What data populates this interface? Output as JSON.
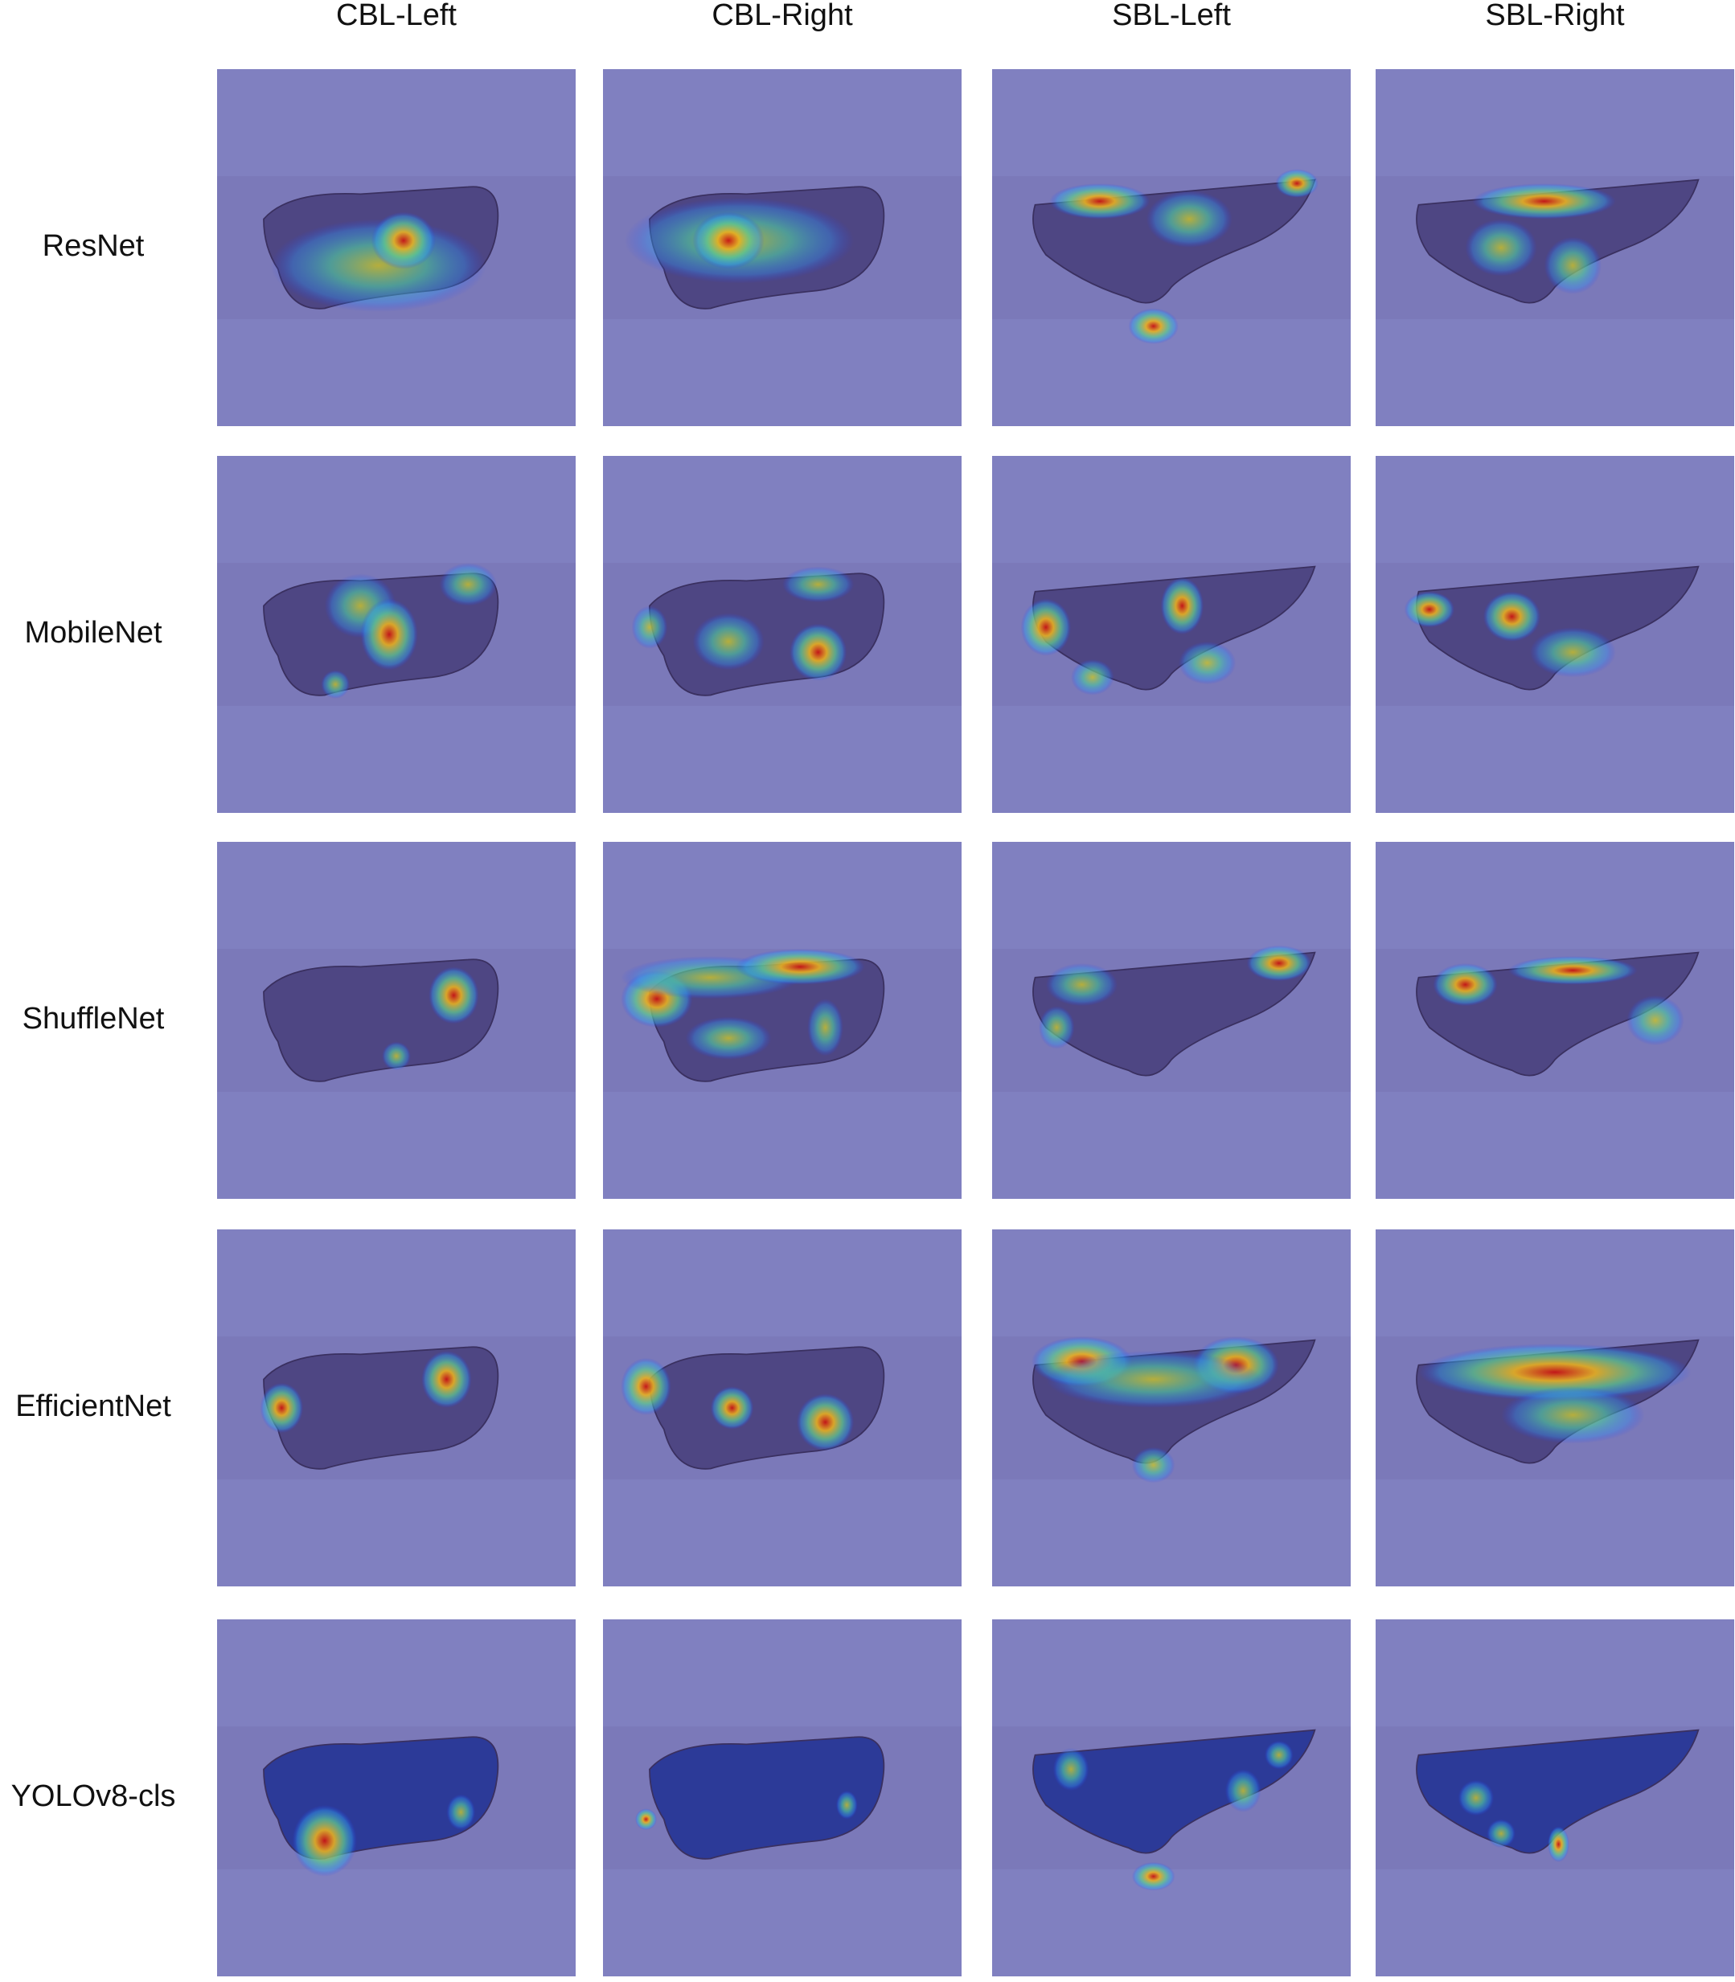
{
  "columns": [
    "CBL-Left",
    "CBL-Right",
    "SBL-Left",
    "SBL-Right"
  ],
  "rows": [
    "ResNet",
    "MobileNet",
    "ShuffleNet",
    "EfficientNet",
    "YOLOv8-cls"
  ]
}
